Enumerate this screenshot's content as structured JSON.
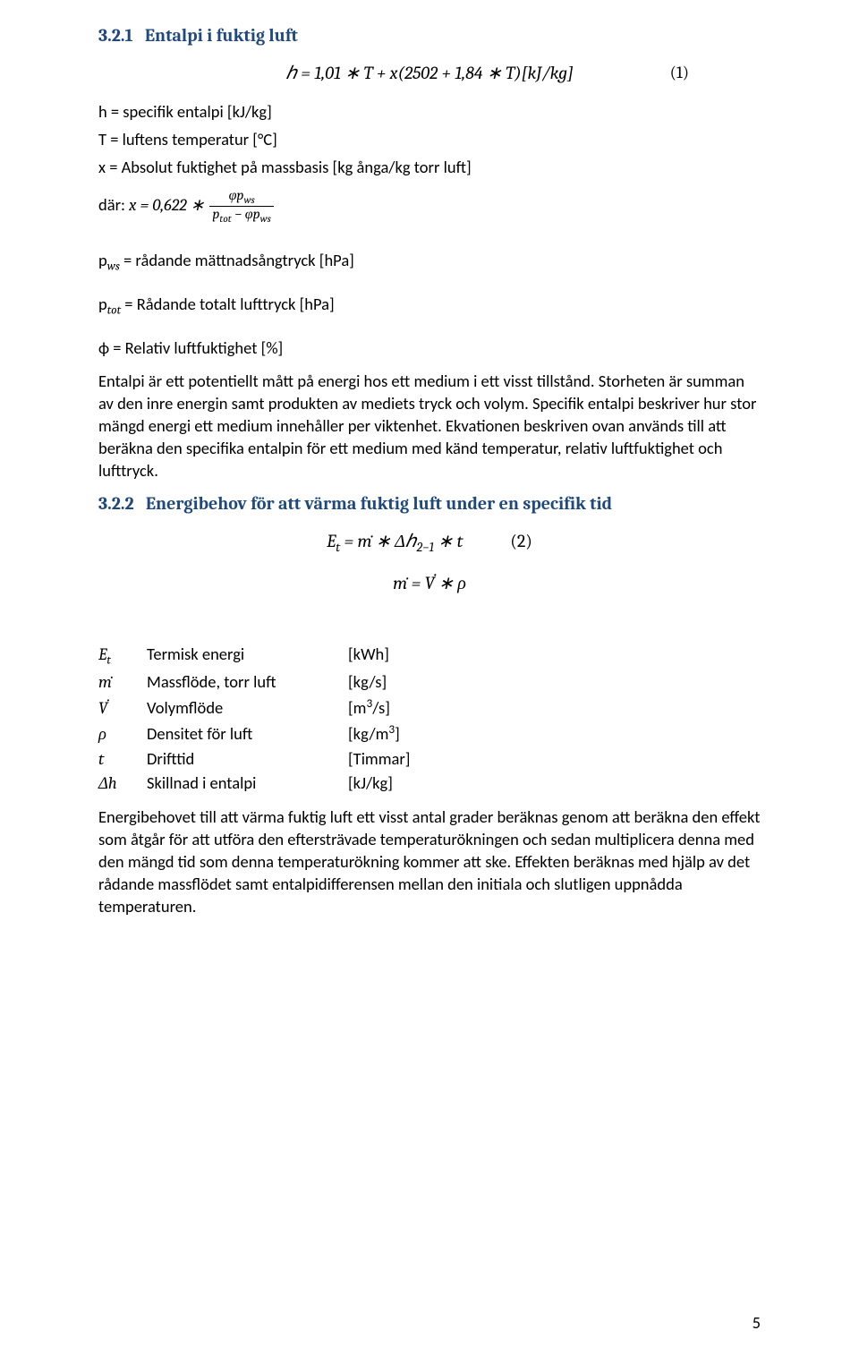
{
  "colors": {
    "heading": "#1f497d",
    "text": "#000000",
    "background": "#ffffff",
    "rule": "#000000"
  },
  "fonts": {
    "body": "Calibri",
    "heading": "Cambria",
    "math": "Cambria"
  },
  "section1": {
    "number": "3.2.1",
    "title": "Entalpi i fuktig luft",
    "equation": "h = 1,01 ∗ T + x(2502 + 1,84 ∗ T)[kJ/kg]",
    "eq_number": "(1)",
    "definitions": {
      "h": "h = specifik entalpi [kJ/kg]",
      "T": "T = luftens temperatur [°C]",
      "x": "x = Absolut fuktighet på massbasis [kg ånga/kg torr luft]"
    },
    "where": {
      "prefix": "där: ",
      "lhs": "x = 0,622 ∗",
      "frac_num": "φp_ws",
      "frac_den": "p_tot − φp_ws"
    },
    "params": {
      "pws": "p_ws = rådande mättnadsångtryck [hPa]",
      "ptot": "p_tot = Rådande totalt lufttryck [hPa]",
      "phi": "ϕ = Relativ luftfuktighet [%]"
    },
    "body": "Entalpi är ett potentiellt mått på energi hos ett medium i ett visst tillstånd. Storheten är summan av den inre energin samt produkten av mediets tryck och volym. Specifik entalpi beskriver hur stor mängd energi ett medium innehåller per viktenhet. Ekvationen beskriven ovan används till att beräkna den specifika entalpin för ett medium med känd temperatur, relativ luftfuktighet och lufttryck."
  },
  "section2": {
    "number": "3.2.2",
    "title": "Energibehov för att värma fuktig luft under en specifik tid",
    "equation1": "E_t = ṁ ∗ Δh_{2−1} ∗ t",
    "eq_number1": "(2)",
    "equation2": "ṁ = V̇ ∗ ρ",
    "definitions": [
      {
        "sym": "E_t",
        "desc": "Termisk energi",
        "unit": "[kWh]"
      },
      {
        "sym": "ṁ",
        "desc": "Massflöde, torr luft",
        "unit": "[kg/s]"
      },
      {
        "sym": "V̇",
        "desc": "Volymflöde",
        "unit": "[m³/s]"
      },
      {
        "sym": "ρ",
        "desc": "Densitet för luft",
        "unit": "[kg/m³]"
      },
      {
        "sym": "t",
        "desc": "Drifttid",
        "unit": "[Timmar]"
      },
      {
        "sym": "Δh",
        "desc": "Skillnad i entalpi",
        "unit": "[kJ/kg]"
      }
    ],
    "body": "Energibehovet till att värma fuktig luft ett visst antal grader beräknas genom att beräkna den effekt som åtgår för att utföra den eftersträvade temperaturökningen och sedan multiplicera denna med den mängd tid som denna temperaturökning kommer att ske. Effekten beräknas med hjälp av det rådande massflödet samt entalpidifferensen mellan den initiala och slutligen uppnådda temperaturen."
  },
  "page_number": "5"
}
